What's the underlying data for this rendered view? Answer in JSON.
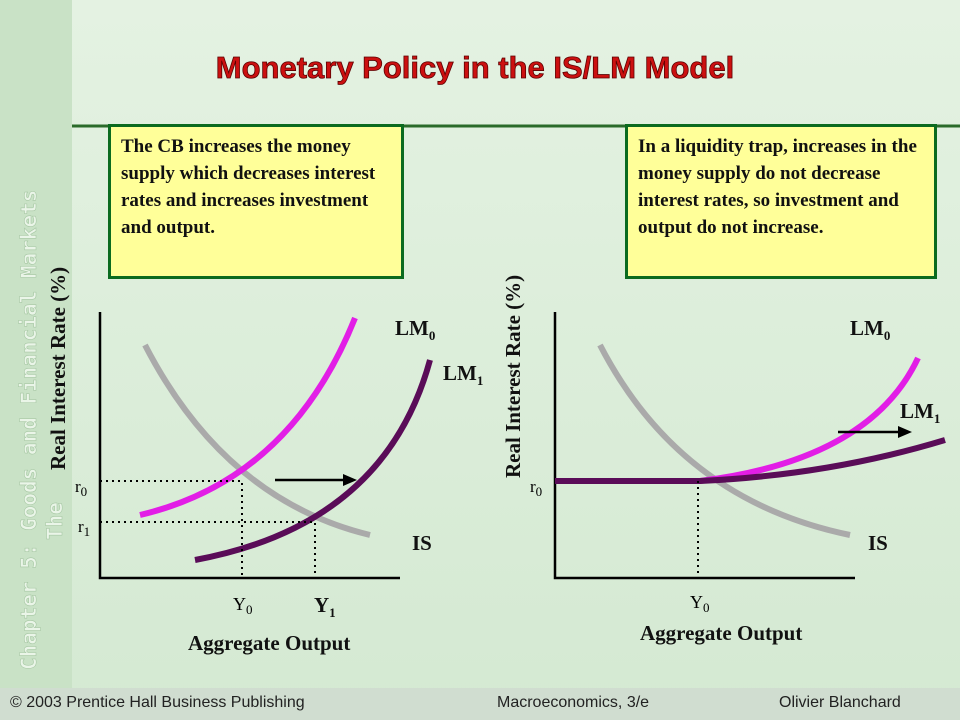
{
  "title": "Monetary Policy in the IS/LM Model",
  "sidebar": {
    "chapter": "Chapter 5: Goods and Financial Markets",
    "subtitle": "The"
  },
  "left_panel": {
    "note": "The CB increases the money supply which decreases interest rates and increases investment and output.",
    "y_axis": "Real Interest Rate (%)",
    "x_axis": "Aggregate Output",
    "curves": {
      "lm0": {
        "base": "LM",
        "sub": "0"
      },
      "lm1": {
        "base": "LM",
        "sub": "1"
      },
      "is": "IS"
    },
    "rates": {
      "r0": {
        "base": "r",
        "sub": "0"
      },
      "r1": {
        "base": "r",
        "sub": "1"
      }
    },
    "outputs": {
      "y0": {
        "base": "Y",
        "sub": "0"
      },
      "y1": {
        "base": "Y",
        "sub": "1"
      }
    }
  },
  "right_panel": {
    "note": "In a liquidity trap, increases in the money supply do not decrease interest rates, so investment and output do not increase.",
    "y_axis": "Real Interest Rate (%)",
    "x_axis": "Aggregate Output",
    "curves": {
      "lm0": {
        "base": "LM",
        "sub": "0"
      },
      "lm1": {
        "base": "LM",
        "sub": "1"
      },
      "is": "IS"
    },
    "rates": {
      "r0": {
        "base": "r",
        "sub": "0"
      }
    },
    "outputs": {
      "y0": {
        "base": "Y",
        "sub": "0"
      }
    }
  },
  "footer": {
    "copyright": "© 2003 Prentice Hall Business Publishing",
    "book": "Macroeconomics, 3/e",
    "author": "Olivier Blanchard"
  }
}
